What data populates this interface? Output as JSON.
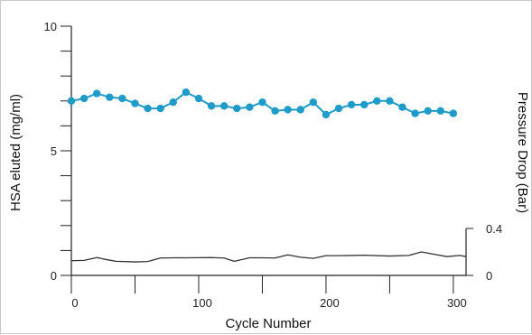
{
  "chart_data": {
    "type": "line",
    "xlabel": "Cycle Number",
    "ylabel": "HSA eluted (mg/ml)",
    "y2label": "Pressure Drop (Bar)",
    "xlim": [
      0,
      310
    ],
    "ylim": [
      0,
      10
    ],
    "y2lim": [
      0,
      0.4
    ],
    "x_ticks": [
      0,
      100,
      200,
      300
    ],
    "y_tick_labels": [
      0,
      5,
      10
    ],
    "y2_tick_labels": [
      0,
      0.4
    ],
    "grid": false,
    "colors": {
      "hsa": "#1f9bc9",
      "pressure": "#333333",
      "axis": "#222222"
    },
    "series": [
      {
        "values": [
          [
            0,
            7.0
          ],
          [
            10,
            7.1
          ],
          [
            20,
            7.3
          ],
          [
            30,
            7.15
          ],
          [
            40,
            7.1
          ],
          [
            50,
            6.9
          ],
          [
            60,
            6.7
          ],
          [
            70,
            6.7
          ],
          [
            80,
            6.95
          ],
          [
            90,
            7.35
          ],
          [
            100,
            7.1
          ],
          [
            110,
            6.8
          ],
          [
            120,
            6.8
          ],
          [
            130,
            6.7
          ],
          [
            140,
            6.75
          ],
          [
            150,
            6.95
          ],
          [
            160,
            6.6
          ],
          [
            170,
            6.65
          ],
          [
            180,
            6.65
          ],
          [
            190,
            6.95
          ],
          [
            200,
            6.45
          ],
          [
            210,
            6.7
          ],
          [
            220,
            6.85
          ],
          [
            230,
            6.85
          ],
          [
            240,
            7.0
          ],
          [
            250,
            7.0
          ],
          [
            260,
            6.75
          ],
          [
            270,
            6.5
          ],
          [
            280,
            6.6
          ],
          [
            290,
            6.6
          ],
          [
            300,
            6.5
          ]
        ]
      },
      {
        "axis": "y2",
        "values": [
          [
            0,
            0.125
          ],
          [
            10,
            0.128
          ],
          [
            20,
            0.152
          ],
          [
            25,
            0.14
          ],
          [
            35,
            0.12
          ],
          [
            50,
            0.115
          ],
          [
            60,
            0.118
          ],
          [
            70,
            0.148
          ],
          [
            80,
            0.15
          ],
          [
            90,
            0.15
          ],
          [
            110,
            0.152
          ],
          [
            120,
            0.148
          ],
          [
            128,
            0.12
          ],
          [
            140,
            0.15
          ],
          [
            150,
            0.15
          ],
          [
            160,
            0.148
          ],
          [
            170,
            0.175
          ],
          [
            180,
            0.155
          ],
          [
            190,
            0.145
          ],
          [
            200,
            0.168
          ],
          [
            210,
            0.168
          ],
          [
            230,
            0.172
          ],
          [
            250,
            0.165
          ],
          [
            265,
            0.17
          ],
          [
            275,
            0.2
          ],
          [
            285,
            0.18
          ],
          [
            295,
            0.16
          ],
          [
            305,
            0.17
          ],
          [
            310,
            0.16
          ]
        ]
      }
    ]
  }
}
